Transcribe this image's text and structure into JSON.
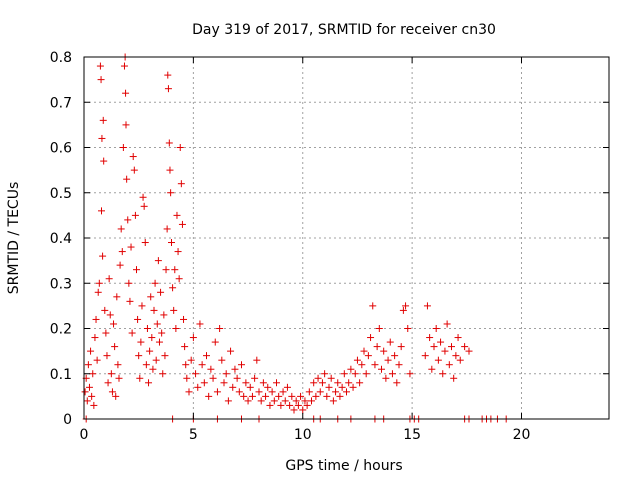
{
  "chart_data": {
    "type": "scatter",
    "title": "Day 319 of 2017, SRMTID for receiver cn30",
    "xlabel": "GPS time / hours",
    "ylabel": "SRMTID / TECUs",
    "xlim": [
      0,
      24
    ],
    "ylim": [
      0,
      0.8
    ],
    "xticks": [
      0,
      5,
      10,
      15,
      20
    ],
    "yticks": [
      0,
      0.1,
      0.2,
      0.3,
      0.4,
      0.5,
      0.6,
      0.7,
      0.8
    ],
    "grid": true,
    "marker": "+",
    "color": "#e00000",
    "points": [
      [
        0.05,
        0.06
      ],
      [
        0.1,
        0.09
      ],
      [
        0.15,
        0.04
      ],
      [
        0.2,
        0.12
      ],
      [
        0.25,
        0.07
      ],
      [
        0.3,
        0.15
      ],
      [
        0.35,
        0.05
      ],
      [
        0.4,
        0.1
      ],
      [
        0.45,
        0.03
      ],
      [
        0.5,
        0.18
      ],
      [
        0.55,
        0.22
      ],
      [
        0.6,
        0.13
      ],
      [
        0.65,
        0.28
      ],
      [
        0.7,
        0.3
      ],
      [
        0.75,
        0.78
      ],
      [
        0.78,
        0.75
      ],
      [
        0.8,
        0.46
      ],
      [
        0.82,
        0.62
      ],
      [
        0.85,
        0.36
      ],
      [
        0.88,
        0.66
      ],
      [
        0.9,
        0.57
      ],
      [
        0.95,
        0.24
      ],
      [
        1.0,
        0.19
      ],
      [
        1.05,
        0.14
      ],
      [
        1.1,
        0.08
      ],
      [
        1.15,
        0.31
      ],
      [
        1.2,
        0.23
      ],
      [
        1.25,
        0.1
      ],
      [
        1.3,
        0.06
      ],
      [
        1.35,
        0.21
      ],
      [
        1.4,
        0.16
      ],
      [
        1.45,
        0.05
      ],
      [
        1.5,
        0.27
      ],
      [
        1.55,
        0.12
      ],
      [
        1.6,
        0.09
      ],
      [
        1.65,
        0.34
      ],
      [
        1.7,
        0.42
      ],
      [
        1.75,
        0.37
      ],
      [
        1.8,
        0.6
      ],
      [
        1.85,
        0.78
      ],
      [
        1.88,
        0.8
      ],
      [
        1.9,
        0.72
      ],
      [
        1.92,
        0.65
      ],
      [
        1.95,
        0.53
      ],
      [
        2.0,
        0.44
      ],
      [
        2.05,
        0.3
      ],
      [
        2.1,
        0.26
      ],
      [
        2.15,
        0.38
      ],
      [
        2.2,
        0.19
      ],
      [
        2.25,
        0.58
      ],
      [
        2.3,
        0.55
      ],
      [
        2.35,
        0.45
      ],
      [
        2.4,
        0.33
      ],
      [
        2.45,
        0.22
      ],
      [
        2.5,
        0.14
      ],
      [
        2.55,
        0.09
      ],
      [
        2.6,
        0.17
      ],
      [
        2.65,
        0.25
      ],
      [
        2.7,
        0.49
      ],
      [
        2.75,
        0.47
      ],
      [
        2.8,
        0.39
      ],
      [
        2.85,
        0.12
      ],
      [
        2.9,
        0.2
      ],
      [
        2.95,
        0.08
      ],
      [
        3.0,
        0.15
      ],
      [
        3.05,
        0.27
      ],
      [
        3.1,
        0.18
      ],
      [
        3.15,
        0.11
      ],
      [
        3.2,
        0.24
      ],
      [
        3.25,
        0.3
      ],
      [
        3.3,
        0.13
      ],
      [
        3.35,
        0.21
      ],
      [
        3.4,
        0.35
      ],
      [
        3.45,
        0.17
      ],
      [
        3.5,
        0.28
      ],
      [
        3.55,
        0.19
      ],
      [
        3.6,
        0.1
      ],
      [
        3.65,
        0.23
      ],
      [
        3.7,
        0.14
      ],
      [
        3.75,
        0.33
      ],
      [
        3.8,
        0.42
      ],
      [
        3.83,
        0.76
      ],
      [
        3.86,
        0.73
      ],
      [
        3.9,
        0.61
      ],
      [
        3.93,
        0.55
      ],
      [
        3.96,
        0.5
      ],
      [
        4.0,
        0.39
      ],
      [
        4.05,
        0.29
      ],
      [
        4.1,
        0.24
      ],
      [
        4.15,
        0.33
      ],
      [
        4.2,
        0.2
      ],
      [
        4.25,
        0.45
      ],
      [
        4.3,
        0.37
      ],
      [
        4.35,
        0.31
      ],
      [
        4.4,
        0.6
      ],
      [
        4.45,
        0.52
      ],
      [
        4.5,
        0.43
      ],
      [
        4.55,
        0.22
      ],
      [
        4.6,
        0.16
      ],
      [
        4.65,
        0.12
      ],
      [
        4.7,
        0.09
      ],
      [
        4.8,
        0.06
      ],
      [
        4.9,
        0.13
      ],
      [
        5.0,
        0.18
      ],
      [
        5.1,
        0.1
      ],
      [
        5.2,
        0.07
      ],
      [
        5.3,
        0.21
      ],
      [
        5.4,
        0.12
      ],
      [
        5.5,
        0.08
      ],
      [
        5.6,
        0.14
      ],
      [
        5.7,
        0.05
      ],
      [
        5.8,
        0.11
      ],
      [
        5.9,
        0.09
      ],
      [
        6.0,
        0.17
      ],
      [
        6.1,
        0.06
      ],
      [
        6.2,
        0.2
      ],
      [
        6.3,
        0.13
      ],
      [
        6.4,
        0.08
      ],
      [
        6.5,
        0.1
      ],
      [
        6.6,
        0.04
      ],
      [
        6.7,
        0.15
      ],
      [
        6.8,
        0.07
      ],
      [
        6.9,
        0.11
      ],
      [
        7.0,
        0.09
      ],
      [
        7.1,
        0.06
      ],
      [
        7.2,
        0.12
      ],
      [
        7.3,
        0.05
      ],
      [
        7.4,
        0.08
      ],
      [
        7.5,
        0.04
      ],
      [
        7.6,
        0.07
      ],
      [
        7.7,
        0.05
      ],
      [
        7.8,
        0.09
      ],
      [
        7.9,
        0.13
      ],
      [
        8.0,
        0.06
      ],
      [
        8.1,
        0.04
      ],
      [
        8.2,
        0.08
      ],
      [
        8.3,
        0.05
      ],
      [
        8.4,
        0.07
      ],
      [
        8.5,
        0.03
      ],
      [
        8.6,
        0.06
      ],
      [
        8.7,
        0.04
      ],
      [
        8.8,
        0.08
      ],
      [
        8.9,
        0.05
      ],
      [
        9.0,
        0.03
      ],
      [
        9.1,
        0.06
      ],
      [
        9.2,
        0.04
      ],
      [
        9.3,
        0.07
      ],
      [
        9.4,
        0.03
      ],
      [
        9.5,
        0.05
      ],
      [
        9.6,
        0.02
      ],
      [
        9.7,
        0.04
      ],
      [
        9.8,
        0.03
      ],
      [
        9.9,
        0.05
      ],
      [
        10.0,
        0.02
      ],
      [
        10.1,
        0.04
      ],
      [
        10.2,
        0.03
      ],
      [
        10.3,
        0.06
      ],
      [
        10.4,
        0.04
      ],
      [
        10.5,
        0.08
      ],
      [
        10.6,
        0.05
      ],
      [
        10.7,
        0.09
      ],
      [
        10.8,
        0.06
      ],
      [
        10.9,
        0.08
      ],
      [
        11.0,
        0.1
      ],
      [
        11.1,
        0.05
      ],
      [
        11.2,
        0.07
      ],
      [
        11.3,
        0.09
      ],
      [
        11.4,
        0.04
      ],
      [
        11.5,
        0.06
      ],
      [
        11.6,
        0.08
      ],
      [
        11.7,
        0.05
      ],
      [
        11.8,
        0.07
      ],
      [
        11.9,
        0.1
      ],
      [
        12.0,
        0.06
      ],
      [
        12.1,
        0.08
      ],
      [
        12.2,
        0.11
      ],
      [
        12.3,
        0.07
      ],
      [
        12.4,
        0.1
      ],
      [
        12.5,
        0.13
      ],
      [
        12.6,
        0.08
      ],
      [
        12.7,
        0.12
      ],
      [
        12.8,
        0.15
      ],
      [
        12.9,
        0.1
      ],
      [
        13.0,
        0.14
      ],
      [
        13.1,
        0.18
      ],
      [
        13.2,
        0.25
      ],
      [
        13.3,
        0.12
      ],
      [
        13.4,
        0.16
      ],
      [
        13.5,
        0.2
      ],
      [
        13.6,
        0.11
      ],
      [
        13.7,
        0.15
      ],
      [
        13.8,
        0.09
      ],
      [
        13.9,
        0.13
      ],
      [
        14.0,
        0.17
      ],
      [
        14.1,
        0.1
      ],
      [
        14.2,
        0.14
      ],
      [
        14.3,
        0.08
      ],
      [
        14.4,
        0.12
      ],
      [
        14.5,
        0.16
      ],
      [
        14.6,
        0.24
      ],
      [
        14.7,
        0.25
      ],
      [
        14.8,
        0.2
      ],
      [
        14.9,
        0.1
      ],
      [
        15.6,
        0.14
      ],
      [
        15.7,
        0.25
      ],
      [
        15.8,
        0.18
      ],
      [
        15.9,
        0.11
      ],
      [
        16.0,
        0.16
      ],
      [
        16.1,
        0.2
      ],
      [
        16.2,
        0.13
      ],
      [
        16.3,
        0.17
      ],
      [
        16.4,
        0.1
      ],
      [
        16.5,
        0.15
      ],
      [
        16.6,
        0.21
      ],
      [
        16.7,
        0.12
      ],
      [
        16.8,
        0.16
      ],
      [
        16.9,
        0.09
      ],
      [
        17.0,
        0.14
      ],
      [
        17.1,
        0.18
      ],
      [
        17.2,
        0.13
      ],
      [
        17.4,
        0.16
      ],
      [
        17.6,
        0.15
      ],
      [
        0.1,
        0.0
      ],
      [
        4.05,
        0.0
      ],
      [
        5.0,
        0.0
      ],
      [
        6.1,
        0.0
      ],
      [
        7.2,
        0.0
      ],
      [
        8.0,
        0.0
      ],
      [
        10.5,
        0.0
      ],
      [
        10.8,
        0.0
      ],
      [
        11.6,
        0.0
      ],
      [
        12.2,
        0.0
      ],
      [
        13.3,
        0.0
      ],
      [
        13.7,
        0.0
      ],
      [
        14.9,
        0.0
      ],
      [
        15.1,
        0.0
      ],
      [
        15.3,
        0.0
      ],
      [
        17.4,
        0.0
      ],
      [
        17.6,
        0.0
      ],
      [
        18.2,
        0.0
      ],
      [
        18.4,
        0.0
      ],
      [
        18.6,
        0.0
      ],
      [
        18.9,
        0.0
      ],
      [
        19.3,
        0.0
      ]
    ]
  }
}
